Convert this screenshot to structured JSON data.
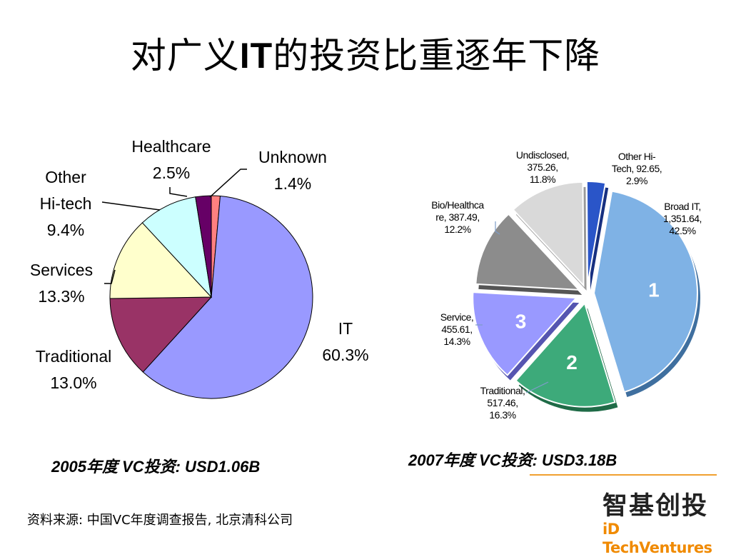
{
  "slide": {
    "title_before": "对广义",
    "title_bold": "IT",
    "title_after": "的投资比重逐年下降",
    "source": "资料来源: 中国VC年度调查报告, 北京清科公司",
    "logo_cn": "智基创投",
    "logo_en": "iD TechVentures"
  },
  "chart_data": [
    {
      "type": "pie",
      "caption": "2005年度 VC投资: USD1.06B",
      "slices": [
        {
          "name": "IT",
          "value": 60.3,
          "label_lines": [
            "IT",
            "60.3%"
          ],
          "color": "#9999ff"
        },
        {
          "name": "Traditional",
          "value": 13.0,
          "label_lines": [
            "Traditional",
            "13.0%"
          ],
          "color": "#993366"
        },
        {
          "name": "Services",
          "value": 13.3,
          "label_lines": [
            "Services",
            "13.3%"
          ],
          "color": "#ffffcc"
        },
        {
          "name": "Other Hi-tech",
          "value": 9.4,
          "label_lines": [
            "Other",
            "Hi-tech",
            "9.4%"
          ],
          "color": "#ccffff"
        },
        {
          "name": "Healthcare",
          "value": 2.5,
          "label_lines": [
            "Healthcare",
            "2.5%"
          ],
          "color": "#660066"
        },
        {
          "name": "Unknown",
          "value": 1.4,
          "label_lines": [
            "Unknown",
            "1.4%"
          ],
          "color": "#ff8080"
        }
      ]
    },
    {
      "type": "pie",
      "caption": "2007年度 VC投资: USD3.18B",
      "slices": [
        {
          "name": "Broad IT",
          "amount": 1351.64,
          "value": 42.5,
          "label_lines": [
            "Broad IT,",
            "1,351.64,",
            "42.5%"
          ],
          "marker": "1",
          "color": "#7fb2e5"
        },
        {
          "name": "Traditional",
          "amount": 517.46,
          "value": 16.3,
          "label_lines": [
            "Traditional,",
            "517.46,",
            "16.3%"
          ],
          "marker": "2",
          "color": "#3daa7a"
        },
        {
          "name": "Service",
          "amount": 455.61,
          "value": 14.3,
          "label_lines": [
            "Service,",
            "455.61,",
            "14.3%"
          ],
          "marker": "3",
          "color": "#9999ff"
        },
        {
          "name": "Bio/Healthcare",
          "amount": 387.49,
          "value": 12.2,
          "label_lines": [
            "Bio/Healthca",
            "re, 387.49,",
            "12.2%"
          ],
          "color": "#8c8c8c"
        },
        {
          "name": "Undisclosed",
          "amount": 375.26,
          "value": 11.8,
          "label_lines": [
            "Undisclosed,",
            "375.26,",
            "11.8%"
          ],
          "color": "#d9d9d9"
        },
        {
          "name": "Other Hi-Tech",
          "amount": 92.65,
          "value": 2.9,
          "label_lines": [
            "Other Hi-",
            "Tech, 92.65,",
            "2.9%"
          ],
          "color": "#2a55c8"
        }
      ]
    }
  ]
}
